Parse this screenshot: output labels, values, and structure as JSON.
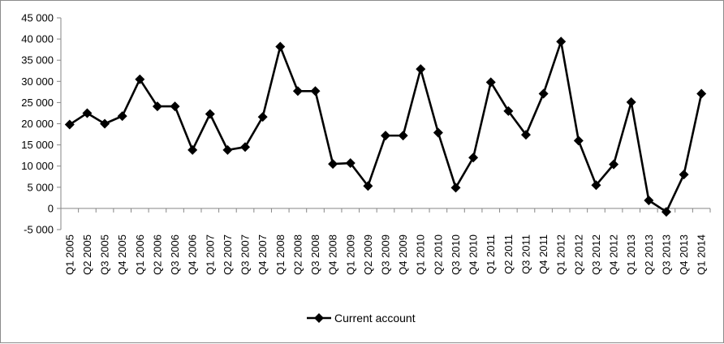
{
  "chart_data": {
    "type": "line",
    "title": "",
    "xlabel": "",
    "ylabel": "",
    "ylim": [
      -5000,
      45000
    ],
    "y_ticks": [
      -5000,
      0,
      5000,
      10000,
      15000,
      20000,
      25000,
      30000,
      35000,
      40000,
      45000
    ],
    "y_tick_labels": [
      "-5 000",
      "0",
      "5 000",
      "10 000",
      "15 000",
      "20 000",
      "25 000",
      "30 000",
      "35 000",
      "40 000",
      "45 000"
    ],
    "grid": false,
    "legend_position": "bottom",
    "categories": [
      "Q1 2005",
      "Q2 2005",
      "Q3 2005",
      "Q4 2005",
      "Q1 2006",
      "Q2 2006",
      "Q3 2006",
      "Q4 2006",
      "Q1 2007",
      "Q2 2007",
      "Q3 2007",
      "Q4 2007",
      "Q1 2008",
      "Q2 2008",
      "Q3 2008",
      "Q4 2008",
      "Q1 2009",
      "Q2 2009",
      "Q3 2009",
      "Q4 2009",
      "Q1 2010",
      "Q2 2010",
      "Q3 2010",
      "Q4 2010",
      "Q1 2011",
      "Q2 2011",
      "Q3 2011",
      "Q4 2011",
      "Q1 2012",
      "Q2 2012",
      "Q3 2012",
      "Q4 2012",
      "Q1 2013",
      "Q2 2013",
      "Q3 2013",
      "Q4 2013",
      "Q1 2014"
    ],
    "series": [
      {
        "name": "Current account",
        "color": "#000000",
        "marker": "diamond",
        "values": [
          19800,
          22500,
          20000,
          21800,
          30500,
          24100,
          24100,
          13800,
          22300,
          13800,
          14500,
          21600,
          38200,
          27700,
          27700,
          10500,
          10700,
          5300,
          17200,
          17200,
          32900,
          17900,
          4900,
          12000,
          29800,
          23000,
          17400,
          27100,
          39400,
          16000,
          5500,
          10400,
          25100,
          1900,
          -800,
          8000,
          27100
        ]
      }
    ]
  }
}
